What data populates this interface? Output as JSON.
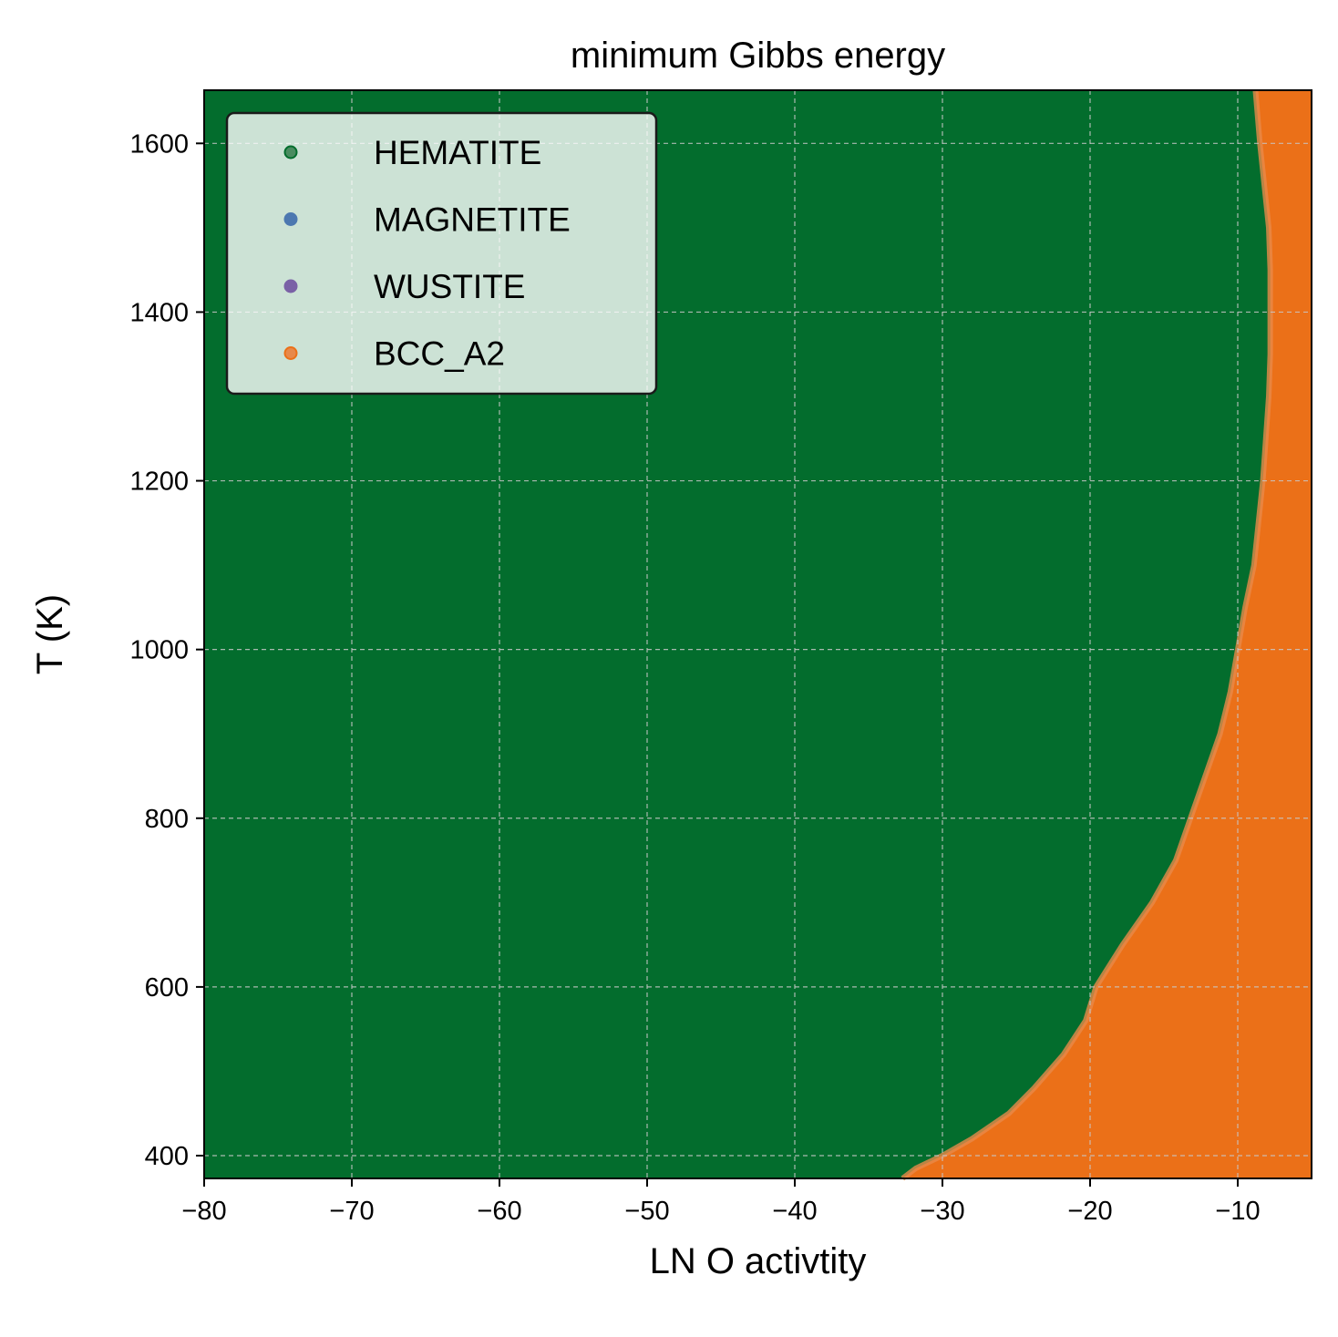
{
  "chart_data": {
    "type": "scatter",
    "title": "minimum Gibbs energy",
    "xlabel": "LN O activtity",
    "ylabel": "T (K)",
    "xlim": [
      -80,
      -5
    ],
    "ylim": [
      373,
      1663
    ],
    "xticks": [
      -80,
      -70,
      -60,
      -50,
      -40,
      -30,
      -20,
      -10
    ],
    "xtick_labels": [
      "−80",
      "−70",
      "−60",
      "−50",
      "−40",
      "−30",
      "−20",
      "−10"
    ],
    "yticks": [
      400,
      600,
      800,
      1000,
      1200,
      1400,
      1600
    ],
    "ytick_labels": [
      "400",
      "600",
      "800",
      "1000",
      "1200",
      "1400",
      "1600"
    ],
    "grid": true,
    "legend_position": "upper-left",
    "series": [
      {
        "name": "HEMATITE",
        "color": "#036d2d",
        "marker_color": "#4a8c60",
        "region": "x below boundary_lnO"
      },
      {
        "name": "MAGNETITE",
        "color": "#4c78b0",
        "marker_color": "#4c78b0",
        "region": "none"
      },
      {
        "name": "WUSTITE",
        "color": "#7a61a6",
        "marker_color": "#7a61a6",
        "region": "none"
      },
      {
        "name": "BCC_A2",
        "color": "#eb7018",
        "marker_color": "#e8894a",
        "region": "x above boundary_lnO"
      }
    ],
    "boundary": {
      "T": [
        373,
        385,
        400,
        420,
        450,
        480,
        520,
        560,
        600,
        650,
        700,
        750,
        800,
        850,
        900,
        950,
        1000,
        1050,
        1100,
        1150,
        1200,
        1250,
        1300,
        1350,
        1400,
        1450,
        1500,
        1550,
        1600,
        1663
      ],
      "boundary_lnO": [
        -32.7,
        -31.8,
        -30.0,
        -28.0,
        -25.5,
        -23.8,
        -21.8,
        -20.3,
        -19.6,
        -17.8,
        -15.8,
        -14.2,
        -13.2,
        -12.2,
        -11.2,
        -10.5,
        -10.0,
        -9.5,
        -8.9,
        -8.6,
        -8.3,
        -8.1,
        -7.9,
        -7.8,
        -7.8,
        -7.8,
        -7.9,
        -8.2,
        -8.5,
        -8.8
      ]
    }
  }
}
